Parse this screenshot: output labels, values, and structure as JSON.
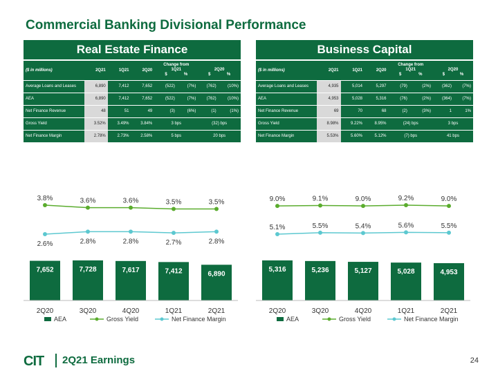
{
  "title": "Commercial Banking Divisional Performance",
  "footer": {
    "logo": "CIT",
    "label": "2Q21 Earnings",
    "page": "24"
  },
  "colors": {
    "green": "#0e6b3f",
    "lightgreen": "#5aac2d",
    "teal": "#5cc8d0"
  },
  "tables": [
    {
      "heading": "Real Estate Finance",
      "units": "($ in millions)",
      "cols": [
        "2Q21",
        "1Q21",
        "2Q20"
      ],
      "change_from": "Change from",
      "change_cols": [
        "1Q21",
        "2Q20"
      ],
      "change_sub": [
        "$",
        "%",
        "$",
        "%"
      ],
      "rows": [
        {
          "label": "Average Loans and Leases",
          "v": [
            "6,890",
            "7,412",
            "7,652"
          ],
          "c": [
            "(522)",
            "(7%)",
            "(762)",
            "(10%)"
          ]
        },
        {
          "label": "AEA",
          "v": [
            "6,890",
            "7,412",
            "7,652"
          ],
          "c": [
            "(522)",
            "(7%)",
            "(762)",
            "(10%)"
          ]
        },
        {
          "label": "Net Finance Revenue",
          "v": [
            "48",
            "51",
            "49"
          ],
          "c": [
            "(3)",
            "(6%)",
            "(1)",
            "(1%)"
          ]
        },
        {
          "label": "Gross Yield",
          "v": [
            "3.52%",
            "3.49%",
            "3.84%"
          ],
          "c2": [
            "3 bps",
            "(32) bps"
          ]
        },
        {
          "label": "Net Finance Margin",
          "v": [
            "2.78%",
            "2.73%",
            "2.58%"
          ],
          "c2": [
            "5 bps",
            "20 bps"
          ]
        }
      ]
    },
    {
      "heading": "Business Capital",
      "units": "($ in millions)",
      "cols": [
        "2Q21",
        "1Q21",
        "2Q20"
      ],
      "change_from": "Change from",
      "change_cols": [
        "1Q21",
        "2Q20"
      ],
      "change_sub": [
        "$",
        "%",
        "$",
        "%"
      ],
      "rows": [
        {
          "label": "Average Loans and Leases",
          "v": [
            "4,935",
            "5,014",
            "5,297"
          ],
          "c": [
            "(79)",
            "(2%)",
            "(362)",
            "(7%)"
          ]
        },
        {
          "label": "AEA",
          "v": [
            "4,953",
            "5,028",
            "5,316"
          ],
          "c": [
            "(76)",
            "(2%)",
            "(364)",
            "(7%)"
          ]
        },
        {
          "label": "Net Finance Revenue",
          "v": [
            "69",
            "70",
            "68"
          ],
          "c": [
            "(2)",
            "(3%)",
            "1",
            "1%"
          ]
        },
        {
          "label": "Gross Yield",
          "v": [
            "8.98%",
            "9.22%",
            "8.95%"
          ],
          "c2": [
            "(24) bps",
            "3 bps"
          ]
        },
        {
          "label": "Net Finance Margin",
          "v": [
            "5.53%",
            "5.60%",
            "5.12%"
          ],
          "c2": [
            "(7) bps",
            "41 bps"
          ]
        }
      ]
    }
  ],
  "chart_data": [
    {
      "type": "bar",
      "categories": [
        "2Q20",
        "3Q20",
        "4Q20",
        "1Q21",
        "2Q21"
      ],
      "series": [
        {
          "name": "AEA",
          "values": [
            7652,
            7728,
            7617,
            7412,
            6890
          ],
          "labels": [
            "7,652",
            "7,728",
            "7,617",
            "7,412",
            "6,890"
          ]
        },
        {
          "name": "Gross Yield",
          "values": [
            3.8,
            3.6,
            3.6,
            3.5,
            3.5
          ],
          "labels": [
            "3.8%",
            "3.6%",
            "3.6%",
            "3.5%",
            "3.5%"
          ]
        },
        {
          "name": "Net Finance Margin",
          "values": [
            2.6,
            2.8,
            2.8,
            2.7,
            2.8
          ],
          "labels": [
            "2.6%",
            "2.8%",
            "2.8%",
            "2.7%",
            "2.8%"
          ]
        }
      ],
      "legend": "bottom"
    },
    {
      "type": "bar",
      "categories": [
        "2Q20",
        "3Q20",
        "4Q20",
        "1Q21",
        "2Q21"
      ],
      "series": [
        {
          "name": "AEA",
          "values": [
            5316,
            5236,
            5127,
            5028,
            4953
          ],
          "labels": [
            "5,316",
            "5,236",
            "5,127",
            "5,028",
            "4,953"
          ]
        },
        {
          "name": "Gross Yield",
          "values": [
            9.0,
            9.1,
            9.0,
            9.2,
            9.0
          ],
          "labels": [
            "9.0%",
            "9.1%",
            "9.0%",
            "9.2%",
            "9.0%"
          ]
        },
        {
          "name": "Net Finance Margin",
          "values": [
            5.1,
            5.5,
            5.4,
            5.6,
            5.5
          ],
          "labels": [
            "5.1%",
            "5.5%",
            "5.4%",
            "5.6%",
            "5.5%"
          ]
        }
      ],
      "legend": "bottom"
    }
  ]
}
